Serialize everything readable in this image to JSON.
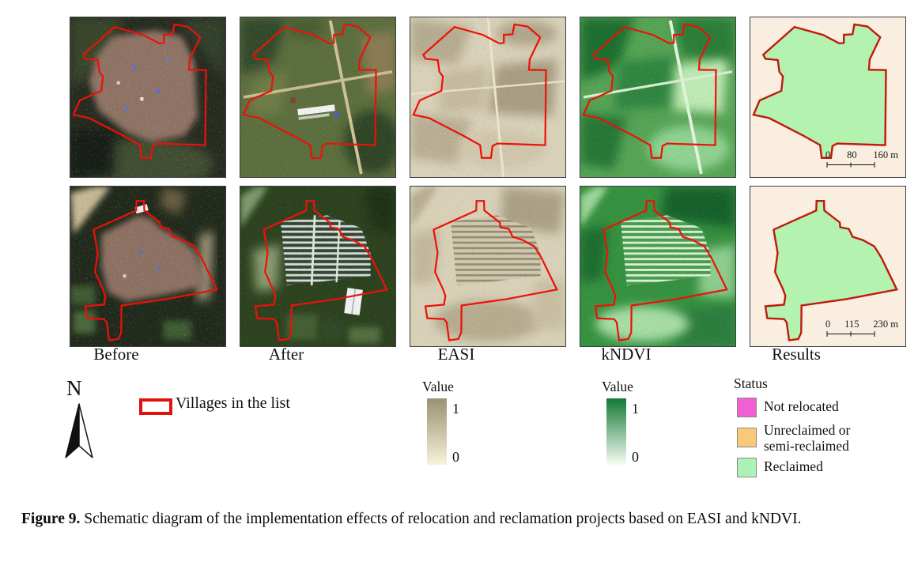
{
  "figure": {
    "caption_label": "Figure 9.",
    "caption_text": " Schematic diagram of the implementation effects of relocation and reclamation projects based on EASI and kNDVI."
  },
  "columns": {
    "c1": "Before",
    "c2": "After",
    "c3": "EASI",
    "c4": "kNDVI",
    "c5": "Results"
  },
  "legend": {
    "north": "N",
    "villages_label": "Villages in the list",
    "villages_color": "#e01210",
    "outline_color": "#ee1009",
    "easi": {
      "title": "Value",
      "max": "1",
      "min": "0",
      "top": "#9a9171",
      "bottom": "#f7f2da"
    },
    "kndvi": {
      "title": "Value",
      "max": "1",
      "min": "0",
      "top": "#137a34",
      "bottom": "#f8fcf5"
    },
    "status": {
      "title": "Status",
      "items": [
        {
          "label": "Not relocated",
          "color": "#f160d2"
        },
        {
          "label": "Unreclaimed or semi-reclaimed",
          "color": "#f9c878"
        },
        {
          "label": "Reclaimed",
          "color": "#adf2b5"
        }
      ]
    }
  },
  "scalebars": {
    "row1": {
      "t0": "0",
      "t1": "80",
      "t2": "160 m"
    },
    "row2": {
      "t0": "0",
      "t1": "115",
      "t2": "230 m"
    }
  }
}
